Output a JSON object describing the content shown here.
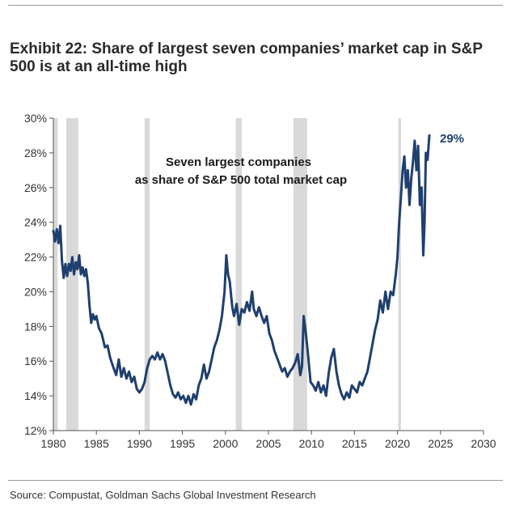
{
  "title": {
    "line1": "Exhibit 22: Share of largest seven companies’ market cap in S&P",
    "line2": "500 is at an all-time high"
  },
  "source": "Source: Compustat, Goldman Sachs Global Investment Research",
  "colors": {
    "line": "#1f3f6e",
    "recession": "#d9d9d9",
    "axis": "#555555"
  },
  "chart_data": {
    "type": "line",
    "title": "Exhibit 22: Share of largest seven companies’ market cap in S&P 500 is at an all-time high",
    "xlabel": "",
    "ylabel": "",
    "xlim": [
      1980,
      2030
    ],
    "ylim": [
      12,
      30
    ],
    "x_ticks": [
      "1980",
      "1985",
      "1990",
      "1995",
      "2000",
      "2005",
      "2010",
      "2015",
      "2020",
      "2025",
      "2030"
    ],
    "y_ticks": [
      "12%",
      "14%",
      "16%",
      "18%",
      "20%",
      "22%",
      "24%",
      "26%",
      "28%",
      "30%"
    ],
    "annotation": {
      "line1": "Seven largest companies",
      "line2": "as share of S&P 500 total market cap"
    },
    "end_label": "29%",
    "recession_bands": [
      [
        1980.0,
        1980.5
      ],
      [
        1981.5,
        1982.9
      ],
      [
        1990.6,
        1991.2
      ],
      [
        2001.2,
        2001.9
      ],
      [
        2007.9,
        2009.5
      ],
      [
        2020.1,
        2020.4
      ]
    ],
    "series": [
      {
        "values": [
          [
            1980.0,
            23.5
          ],
          [
            1980.2,
            22.9
          ],
          [
            1980.4,
            23.6
          ],
          [
            1980.6,
            22.8
          ],
          [
            1980.8,
            23.8
          ],
          [
            1981.0,
            21.8
          ],
          [
            1981.2,
            20.8
          ],
          [
            1981.4,
            21.6
          ],
          [
            1981.6,
            20.9
          ],
          [
            1981.8,
            21.6
          ],
          [
            1982.0,
            21.2
          ],
          [
            1982.2,
            22.0
          ],
          [
            1982.4,
            21.0
          ],
          [
            1982.6,
            21.7
          ],
          [
            1982.8,
            21.3
          ],
          [
            1983.0,
            22.1
          ],
          [
            1983.2,
            21.0
          ],
          [
            1983.4,
            21.4
          ],
          [
            1983.6,
            20.9
          ],
          [
            1983.8,
            21.3
          ],
          [
            1984.0,
            20.5
          ],
          [
            1984.2,
            19.2
          ],
          [
            1984.4,
            18.2
          ],
          [
            1984.6,
            18.7
          ],
          [
            1984.8,
            18.4
          ],
          [
            1985.0,
            18.6
          ],
          [
            1985.3,
            17.9
          ],
          [
            1985.6,
            17.6
          ],
          [
            1986.0,
            16.8
          ],
          [
            1986.3,
            16.9
          ],
          [
            1986.6,
            16.2
          ],
          [
            1987.0,
            15.6
          ],
          [
            1987.3,
            15.2
          ],
          [
            1987.6,
            16.1
          ],
          [
            1987.9,
            15.1
          ],
          [
            1988.2,
            15.6
          ],
          [
            1988.5,
            15.0
          ],
          [
            1988.8,
            15.4
          ],
          [
            1989.1,
            14.8
          ],
          [
            1989.4,
            15.1
          ],
          [
            1989.7,
            14.4
          ],
          [
            1990.0,
            14.2
          ],
          [
            1990.3,
            14.4
          ],
          [
            1990.6,
            14.8
          ],
          [
            1990.9,
            15.6
          ],
          [
            1991.2,
            16.1
          ],
          [
            1991.5,
            16.3
          ],
          [
            1991.8,
            16.1
          ],
          [
            1992.1,
            16.5
          ],
          [
            1992.4,
            16.1
          ],
          [
            1992.7,
            16.4
          ],
          [
            1993.0,
            16.0
          ],
          [
            1993.3,
            15.3
          ],
          [
            1993.6,
            14.6
          ],
          [
            1993.9,
            14.1
          ],
          [
            1994.2,
            13.9
          ],
          [
            1994.5,
            14.2
          ],
          [
            1994.8,
            13.8
          ],
          [
            1995.1,
            14.0
          ],
          [
            1995.4,
            13.6
          ],
          [
            1995.7,
            14.0
          ],
          [
            1996.0,
            13.5
          ],
          [
            1996.3,
            14.1
          ],
          [
            1996.6,
            13.8
          ],
          [
            1996.9,
            14.6
          ],
          [
            1997.2,
            15.0
          ],
          [
            1997.5,
            15.8
          ],
          [
            1997.8,
            15.0
          ],
          [
            1998.1,
            15.4
          ],
          [
            1998.4,
            16.1
          ],
          [
            1998.7,
            16.8
          ],
          [
            1999.0,
            17.2
          ],
          [
            1999.3,
            17.8
          ],
          [
            1999.6,
            18.6
          ],
          [
            1999.9,
            20.0
          ],
          [
            2000.1,
            22.1
          ],
          [
            2000.3,
            21.0
          ],
          [
            2000.5,
            20.6
          ],
          [
            2000.8,
            19.1
          ],
          [
            2001.0,
            18.6
          ],
          [
            2001.3,
            19.3
          ],
          [
            2001.6,
            18.1
          ],
          [
            2001.9,
            19.0
          ],
          [
            2002.2,
            18.8
          ],
          [
            2002.5,
            19.4
          ],
          [
            2002.8,
            18.9
          ],
          [
            2003.1,
            20.0
          ],
          [
            2003.3,
            19.0
          ],
          [
            2003.6,
            18.6
          ],
          [
            2003.9,
            19.1
          ],
          [
            2004.2,
            18.6
          ],
          [
            2004.5,
            18.2
          ],
          [
            2004.8,
            18.6
          ],
          [
            2005.1,
            17.6
          ],
          [
            2005.4,
            17.2
          ],
          [
            2005.7,
            16.6
          ],
          [
            2006.0,
            16.2
          ],
          [
            2006.3,
            15.8
          ],
          [
            2006.6,
            15.4
          ],
          [
            2006.9,
            15.6
          ],
          [
            2007.2,
            15.1
          ],
          [
            2007.5,
            15.4
          ],
          [
            2007.8,
            15.6
          ],
          [
            2008.1,
            15.9
          ],
          [
            2008.4,
            16.4
          ],
          [
            2008.7,
            15.2
          ],
          [
            2008.9,
            15.7
          ],
          [
            2009.1,
            18.6
          ],
          [
            2009.3,
            17.8
          ],
          [
            2009.6,
            16.4
          ],
          [
            2009.9,
            14.8
          ],
          [
            2010.2,
            14.6
          ],
          [
            2010.5,
            14.3
          ],
          [
            2010.8,
            14.8
          ],
          [
            2011.1,
            14.2
          ],
          [
            2011.4,
            14.6
          ],
          [
            2011.7,
            14.0
          ],
          [
            2012.0,
            15.3
          ],
          [
            2012.3,
            16.2
          ],
          [
            2012.6,
            16.7
          ],
          [
            2012.9,
            15.4
          ],
          [
            2013.2,
            14.6
          ],
          [
            2013.5,
            14.1
          ],
          [
            2013.8,
            13.8
          ],
          [
            2014.1,
            14.2
          ],
          [
            2014.4,
            13.9
          ],
          [
            2014.7,
            14.6
          ],
          [
            2015.0,
            14.4
          ],
          [
            2015.3,
            14.2
          ],
          [
            2015.6,
            14.8
          ],
          [
            2015.9,
            14.6
          ],
          [
            2016.2,
            15.0
          ],
          [
            2016.5,
            15.4
          ],
          [
            2016.8,
            16.2
          ],
          [
            2017.1,
            17.0
          ],
          [
            2017.4,
            17.8
          ],
          [
            2017.7,
            18.4
          ],
          [
            2018.0,
            19.5
          ],
          [
            2018.3,
            18.8
          ],
          [
            2018.6,
            20.0
          ],
          [
            2018.9,
            19.0
          ],
          [
            2019.2,
            20.0
          ],
          [
            2019.5,
            19.8
          ],
          [
            2019.8,
            21.0
          ],
          [
            2020.0,
            22.0
          ],
          [
            2020.2,
            24.0
          ],
          [
            2020.4,
            25.5
          ],
          [
            2020.6,
            27.0
          ],
          [
            2020.8,
            27.8
          ],
          [
            2021.0,
            26.0
          ],
          [
            2021.2,
            27.0
          ],
          [
            2021.4,
            25.0
          ],
          [
            2021.6,
            26.5
          ],
          [
            2021.8,
            27.5
          ],
          [
            2022.0,
            28.7
          ],
          [
            2022.2,
            27.0
          ],
          [
            2022.4,
            28.4
          ],
          [
            2022.6,
            25.0
          ],
          [
            2022.8,
            26.0
          ],
          [
            2023.0,
            22.1
          ],
          [
            2023.15,
            24.0
          ],
          [
            2023.3,
            28.0
          ],
          [
            2023.5,
            27.6
          ],
          [
            2023.7,
            29.0
          ]
        ]
      }
    ]
  }
}
